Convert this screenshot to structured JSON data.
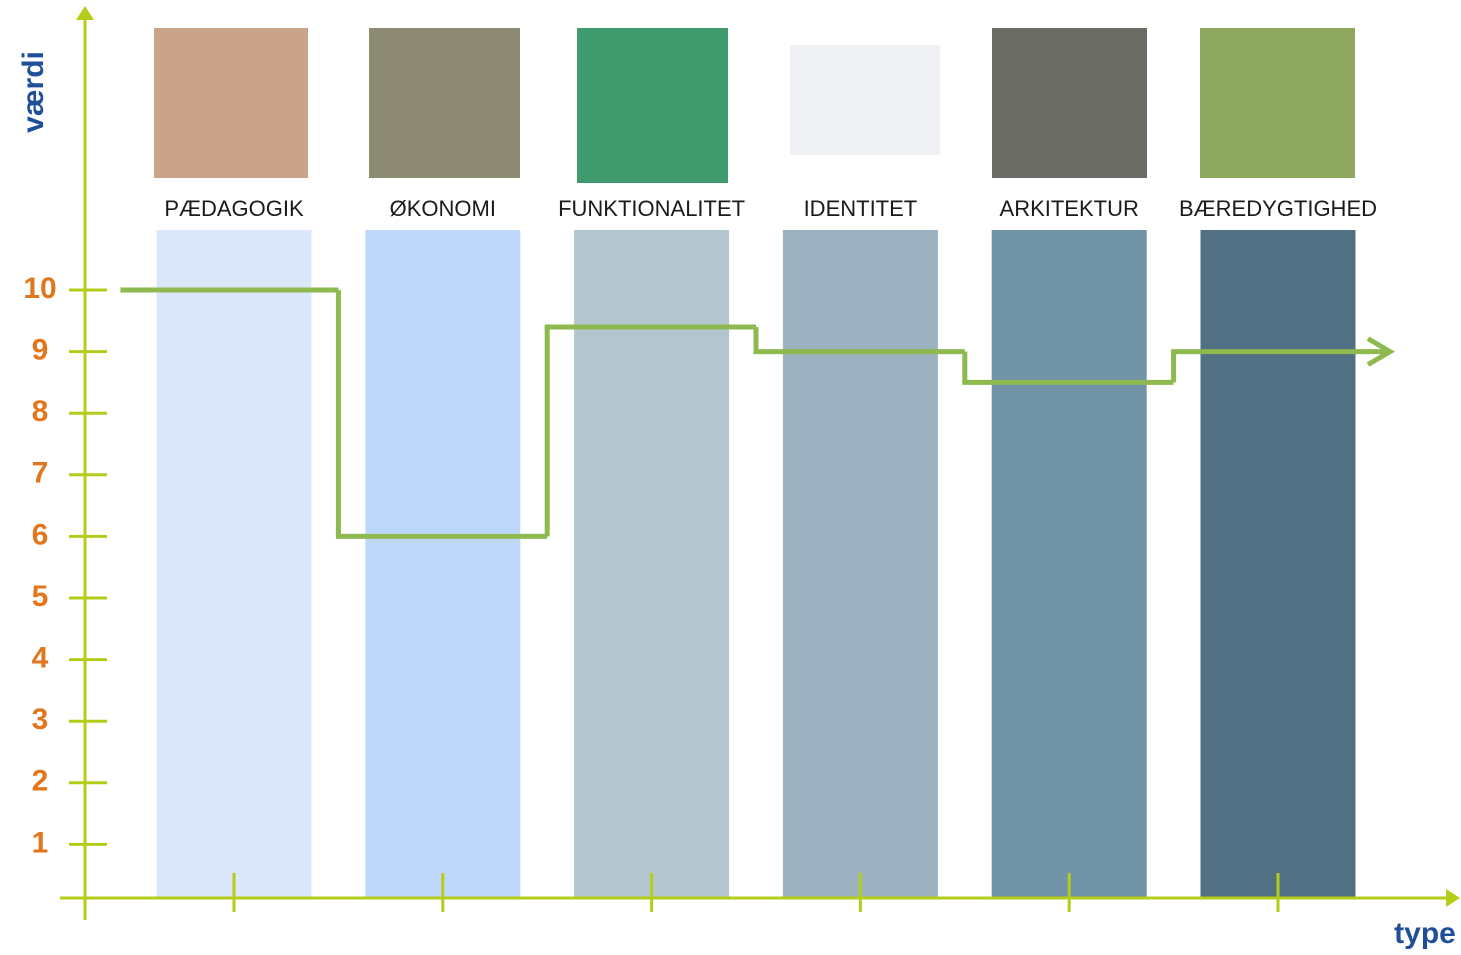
{
  "chart_data": {
    "type": "step",
    "x_label": "type",
    "y_label": "værdi",
    "categories": [
      "PÆDAGOGIK",
      "ØKONOMI",
      "FUNKTIONALITET",
      "IDENTITET",
      "ARKITEKTUR",
      "BÆREDYGTIGHED"
    ],
    "values": [
      10,
      6,
      9.4,
      9,
      8.5,
      9
    ],
    "color": "#8db94f",
    "column_colors": [
      "#dbe8fb",
      "#bed8fb",
      "#b3c6cf",
      "#9cb2c0",
      "#7193a7",
      "#527083"
    ],
    "ylim": [
      0,
      10
    ],
    "yticks": [
      1,
      2,
      3,
      4,
      5,
      6,
      7,
      8,
      9,
      10
    ],
    "axis_color": "#b6cc1a",
    "tick_label_color": "#e2761c",
    "axis_label_color": "#1f4f98"
  }
}
